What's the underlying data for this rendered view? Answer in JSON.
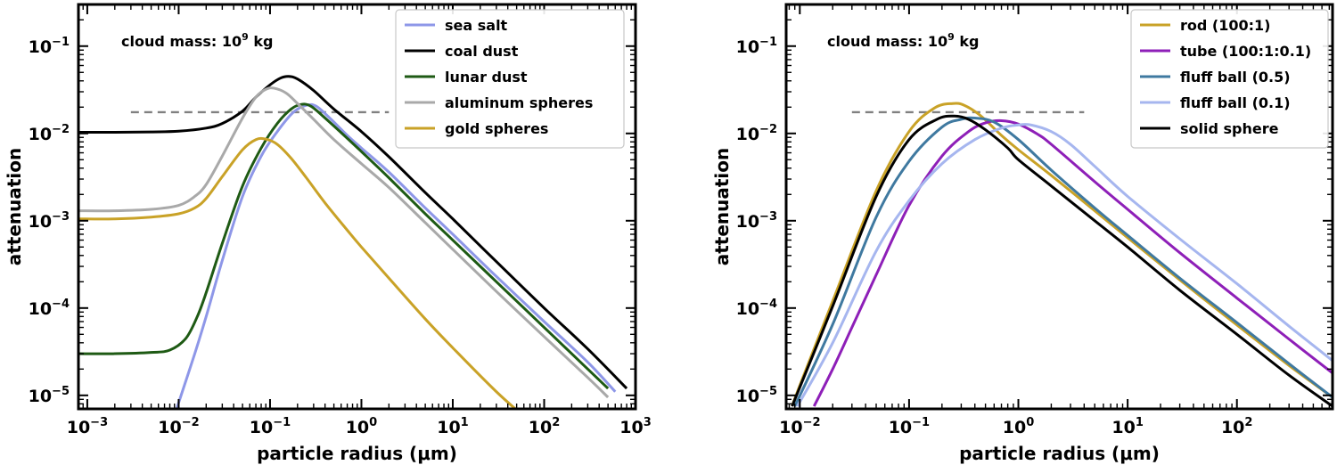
{
  "chart_data": [
    {
      "type": "line",
      "title": "",
      "xlabel": "particle radius (μm)",
      "ylabel": "attenuation",
      "xscale": "log",
      "yscale": "log",
      "xlim": [
        0.0008,
        1000
      ],
      "ylim": [
        7e-06,
        0.3
      ],
      "x_tick_labels": [
        "10⁻³",
        "10⁻²",
        "10⁻¹",
        "10⁰",
        "10¹",
        "10²",
        "10³"
      ],
      "y_tick_labels": [
        "10⁻⁵",
        "10⁻⁴",
        "10⁻³",
        "10⁻²",
        "10⁻¹"
      ],
      "annotation": {
        "base": "cloud mass: 10",
        "exp": "9",
        "unit": " kg"
      },
      "threshold": {
        "y": 0.0175,
        "x_range": [
          0.003,
          2
        ],
        "style": "dashed",
        "color": "#808080"
      },
      "legend_position": "top-right",
      "series": [
        {
          "name": "sea salt",
          "color": "#8e97e8",
          "x": [
            0.0095,
            0.015,
            0.02,
            0.03,
            0.05,
            0.08,
            0.12,
            0.18,
            0.25,
            0.32,
            0.45,
            0.7,
            1,
            2,
            5,
            10,
            30,
            100,
            300,
            600
          ],
          "y": [
            7e-06,
            3e-05,
            8e-05,
            0.00035,
            0.0019,
            0.0055,
            0.0105,
            0.0175,
            0.021,
            0.0205,
            0.015,
            0.0095,
            0.0068,
            0.0036,
            0.0014,
            0.0007,
            0.00023,
            7e-05,
            2.4e-05,
            1.1e-05
          ]
        },
        {
          "name": "coal dust",
          "color": "#000000",
          "x": [
            0.0008,
            0.002,
            0.005,
            0.01,
            0.02,
            0.03,
            0.05,
            0.07,
            0.1,
            0.13,
            0.16,
            0.2,
            0.3,
            0.5,
            1,
            2,
            5,
            10,
            30,
            100,
            300,
            800
          ],
          "y": [
            0.0103,
            0.0103,
            0.0104,
            0.0106,
            0.0115,
            0.013,
            0.018,
            0.026,
            0.036,
            0.043,
            0.045,
            0.042,
            0.031,
            0.019,
            0.0105,
            0.0054,
            0.0021,
            0.00105,
            0.00034,
            0.0001,
            3.4e-05,
            1.2e-05
          ]
        },
        {
          "name": "lunar dust",
          "color": "#1e5a14",
          "x": [
            0.0008,
            0.002,
            0.005,
            0.008,
            0.012,
            0.016,
            0.02,
            0.03,
            0.05,
            0.08,
            0.12,
            0.17,
            0.22,
            0.28,
            0.4,
            0.7,
            1,
            2,
            5,
            10,
            30,
            100,
            300,
            500
          ],
          "y": [
            3e-05,
            3e-05,
            3.1e-05,
            3.3e-05,
            4.5e-05,
            8e-05,
            0.00015,
            0.00055,
            0.0025,
            0.0068,
            0.013,
            0.019,
            0.0215,
            0.0205,
            0.015,
            0.0088,
            0.0062,
            0.0031,
            0.0012,
            0.0006,
            0.0002,
            6e-05,
            2e-05,
            1.2e-05
          ]
        },
        {
          "name": "aluminum spheres",
          "color": "#a9a9a9",
          "x": [
            0.0008,
            0.002,
            0.005,
            0.01,
            0.015,
            0.02,
            0.03,
            0.05,
            0.07,
            0.09,
            0.11,
            0.15,
            0.2,
            0.3,
            0.5,
            1,
            2,
            5,
            10,
            30,
            100,
            300,
            500
          ],
          "y": [
            0.0013,
            0.0013,
            0.00135,
            0.0015,
            0.0019,
            0.0026,
            0.0055,
            0.015,
            0.026,
            0.032,
            0.033,
            0.029,
            0.022,
            0.0145,
            0.0085,
            0.0045,
            0.0024,
            0.00095,
            0.00047,
            0.000155,
            4.7e-05,
            1.6e-05,
            9.5e-06
          ]
        },
        {
          "name": "gold spheres",
          "color": "#c9a227",
          "x": [
            0.0008,
            0.002,
            0.005,
            0.01,
            0.015,
            0.02,
            0.03,
            0.05,
            0.07,
            0.09,
            0.12,
            0.17,
            0.25,
            0.4,
            0.7,
            1,
            2,
            5,
            10,
            30,
            70
          ],
          "y": [
            0.00105,
            0.00105,
            0.0011,
            0.0012,
            0.0014,
            0.0018,
            0.0032,
            0.0065,
            0.0085,
            0.0086,
            0.0075,
            0.0052,
            0.0031,
            0.0016,
            0.00078,
            0.0005,
            0.00022,
            7.5e-05,
            3.5e-05,
            1.1e-05,
            5e-06
          ]
        }
      ]
    },
    {
      "type": "line",
      "title": "",
      "xlabel": "particle radius (μm)",
      "ylabel": "attenuation",
      "xscale": "log",
      "yscale": "log",
      "xlim": [
        0.0075,
        750
      ],
      "ylim": [
        7e-06,
        0.3
      ],
      "x_tick_labels": [
        "10⁻²",
        "10⁻¹",
        "10⁰",
        "10¹",
        "10²"
      ],
      "y_tick_labels": [
        "10⁻⁵",
        "10⁻⁴",
        "10⁻³",
        "10⁻²",
        "10⁻¹"
      ],
      "annotation": {
        "base": "cloud mass: 10",
        "exp": "9",
        "unit": " kg"
      },
      "threshold": {
        "y": 0.0175,
        "x_range": [
          0.03,
          4
        ],
        "style": "dashed",
        "color": "#808080"
      },
      "legend_position": "top-right",
      "series": [
        {
          "name": "rod (100:1)",
          "color": "#c9a227",
          "x": [
            0.0085,
            0.01,
            0.02,
            0.05,
            0.1,
            0.17,
            0.25,
            0.32,
            0.45,
            0.7,
            1,
            2,
            5,
            10,
            30,
            100,
            300,
            750
          ],
          "y": [
            7.5e-06,
            1.3e-05,
            0.00012,
            0.0022,
            0.0105,
            0.0195,
            0.022,
            0.021,
            0.016,
            0.0095,
            0.0065,
            0.0033,
            0.0013,
            0.00064,
            0.00021,
            6.4e-05,
            2.2e-05,
            9.5e-06
          ]
        },
        {
          "name": "tube (100:1:0.1)",
          "color": "#8e1fb8",
          "x": [
            0.0135,
            0.02,
            0.03,
            0.05,
            0.1,
            0.2,
            0.35,
            0.5,
            0.7,
            1,
            1.5,
            2,
            5,
            10,
            30,
            100,
            300,
            750
          ],
          "y": [
            7.5e-06,
            2e-05,
            6e-05,
            0.00024,
            0.0015,
            0.0055,
            0.0105,
            0.0132,
            0.014,
            0.0128,
            0.0098,
            0.0075,
            0.0028,
            0.00135,
            0.00043,
            0.00013,
            4.4e-05,
            1.8e-05
          ]
        },
        {
          "name": "fluff ball (0.5)",
          "color": "#3f79a0",
          "x": [
            0.009,
            0.02,
            0.05,
            0.1,
            0.2,
            0.3,
            0.4,
            0.6,
            1,
            2,
            5,
            10,
            30,
            100,
            300,
            750
          ],
          "y": [
            7.5e-06,
            6.5e-05,
            0.0011,
            0.0048,
            0.0118,
            0.0145,
            0.015,
            0.0135,
            0.0085,
            0.0038,
            0.0014,
            0.00068,
            0.00022,
            6.8e-05,
            2.3e-05,
            9.5e-06
          ]
        },
        {
          "name": "fluff ball (0.1)",
          "color": "#a6b6ef",
          "x": [
            0.0095,
            0.02,
            0.05,
            0.1,
            0.2,
            0.4,
            0.7,
            1,
            1.3,
            2,
            3,
            5,
            10,
            30,
            100,
            300,
            750
          ],
          "y": [
            7.5e-06,
            4e-05,
            0.00045,
            0.0017,
            0.0045,
            0.0085,
            0.0115,
            0.0125,
            0.0125,
            0.0105,
            0.0075,
            0.0042,
            0.0019,
            0.00062,
            0.00019,
            6.2e-05,
            2.5e-05
          ]
        },
        {
          "name": "solid sphere",
          "color": "#000000",
          "x": [
            0.0085,
            0.02,
            0.05,
            0.1,
            0.18,
            0.26,
            0.35,
            0.5,
            0.8,
            1,
            2,
            5,
            10,
            30,
            100,
            300,
            750
          ],
          "y": [
            7.5e-06,
            0.000105,
            0.0019,
            0.0085,
            0.0145,
            0.0158,
            0.0145,
            0.011,
            0.0068,
            0.005,
            0.0025,
            0.001,
            0.0005,
            0.00016,
            5e-05,
            1.7e-05,
            7.5e-06
          ]
        }
      ]
    }
  ]
}
